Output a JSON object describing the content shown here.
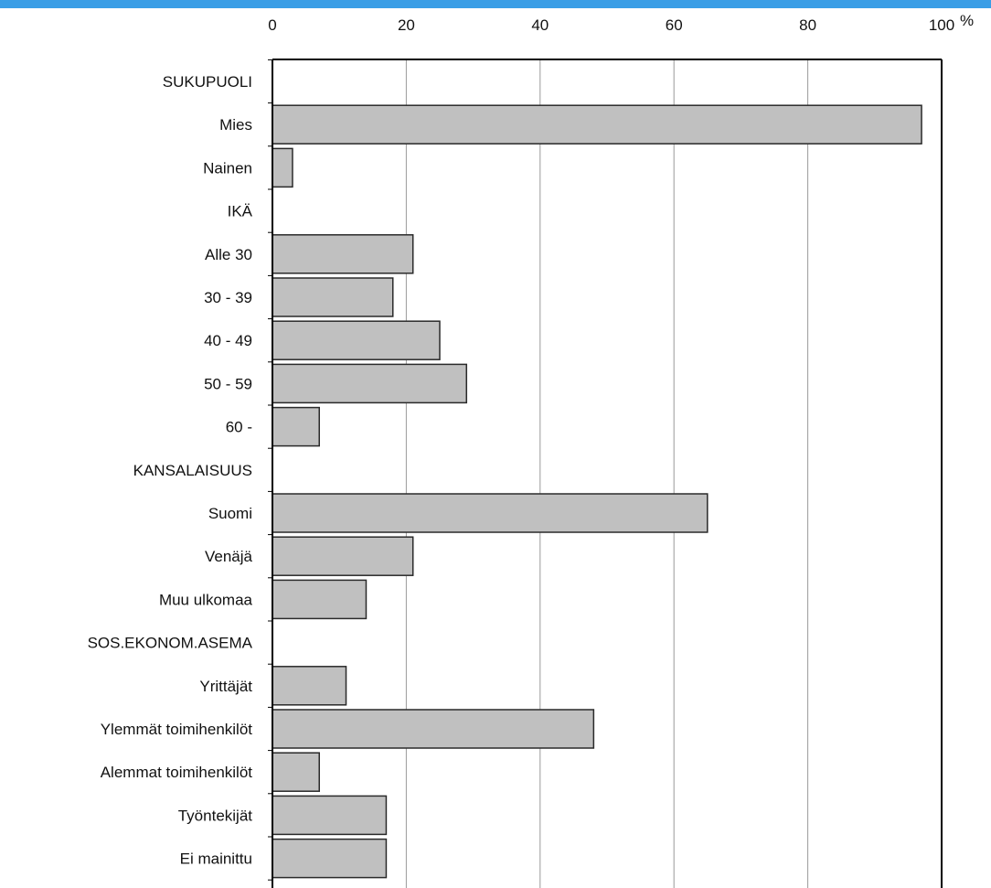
{
  "colors": {
    "top_strip": "#3a9ee6",
    "bar_fill": "#c0c0c0",
    "bar_stroke": "#2a2a2a",
    "grid": "#9a9a9a",
    "axis": "#000000",
    "text": "#111111"
  },
  "chart_data": {
    "type": "bar",
    "orientation": "horizontal",
    "title": "",
    "xlabel": "",
    "ylabel": "",
    "x_unit": "%",
    "xlim": [
      0,
      100
    ],
    "x_ticks": [
      0,
      20,
      40,
      60,
      80,
      100
    ],
    "x_tick_labels": [
      "0",
      "20",
      "40",
      "60",
      "80",
      "100"
    ],
    "grid": true,
    "categories": [
      "SUKUPUOLI",
      "Mies",
      "Nainen",
      "IKÄ",
      "Alle 30",
      "30 - 39",
      "40 - 49",
      "50 - 59",
      "60 -",
      "KANSALAISUUS",
      "Suomi",
      "Venäjä",
      "Muu ulkomaa",
      "SOS.EKONOM.ASEMA",
      "Yrittäjät",
      "Ylemmät toimihenkilöt",
      "Alemmat toimihenkilöt",
      "Työntekijät",
      "Ei mainittu"
    ],
    "values": [
      null,
      97,
      3,
      null,
      21,
      18,
      25,
      29,
      7,
      null,
      65,
      21,
      14,
      null,
      11,
      48,
      7,
      17,
      17
    ]
  }
}
